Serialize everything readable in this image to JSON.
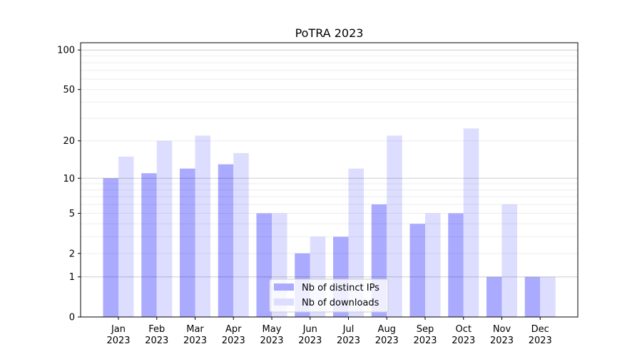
{
  "chart_data": {
    "type": "bar",
    "title": "PoTRA 2023",
    "xlabel": "",
    "ylabel": "",
    "yscale": "log(1+y)",
    "ylim": [
      0,
      114
    ],
    "yticks": [
      0,
      1,
      2,
      5,
      10,
      20,
      50,
      100
    ],
    "grid": true,
    "categories": [
      "Jan\n2023",
      "Feb\n2023",
      "Mar\n2023",
      "Apr\n2023",
      "May\n2023",
      "Jun\n2023",
      "Jul\n2023",
      "Aug\n2023",
      "Sep\n2023",
      "Oct\n2023",
      "Nov\n2023",
      "Dec\n2023"
    ],
    "series": [
      {
        "name": "Nb of distinct IPs",
        "color": "#aaaaff",
        "values": [
          10,
          11,
          12,
          13,
          5,
          2,
          3,
          6,
          4,
          5,
          1,
          1
        ]
      },
      {
        "name": "Nb of downloads",
        "color": "#ddddff",
        "values": [
          15,
          20,
          22,
          16,
          5,
          3,
          12,
          22,
          5,
          25,
          6,
          1
        ]
      }
    ],
    "legend": "bottom-center"
  }
}
